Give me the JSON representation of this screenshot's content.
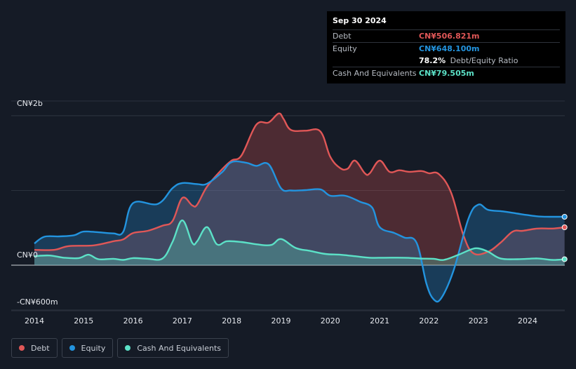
{
  "chart_data": {
    "type": "area",
    "title": "",
    "xlabel": "",
    "ylabel": "",
    "ylim": [
      -600,
      2000
    ],
    "y_unit": "CN¥ millions",
    "y_tick_labels": [
      {
        "value": 2000,
        "label": "CN¥2b"
      },
      {
        "value": 0,
        "label": "CN¥0"
      },
      {
        "value": -600,
        "label": "-CN¥600m"
      }
    ],
    "x_ticks": [
      {
        "value": 2014,
        "label": "2014"
      },
      {
        "value": 2015,
        "label": "2015"
      },
      {
        "value": 2016,
        "label": "2016"
      },
      {
        "value": 2017,
        "label": "2017"
      },
      {
        "value": 2018,
        "label": "2018"
      },
      {
        "value": 2019,
        "label": "2019"
      },
      {
        "value": 2020,
        "label": "2020"
      },
      {
        "value": 2021,
        "label": "2021"
      },
      {
        "value": 2022,
        "label": "2022"
      },
      {
        "value": 2023,
        "label": "2023"
      },
      {
        "value": 2024,
        "label": "2024"
      }
    ],
    "xlim": [
      2013.54,
      2024.75
    ],
    "series": [
      {
        "name": "Debt",
        "color": "#e05757",
        "points": [
          [
            2014.0,
            205
          ],
          [
            2014.4,
            205
          ],
          [
            2014.7,
            255
          ],
          [
            2015.2,
            265
          ],
          [
            2015.6,
            320
          ],
          [
            2015.8,
            345
          ],
          [
            2016.0,
            430
          ],
          [
            2016.3,
            460
          ],
          [
            2016.6,
            530
          ],
          [
            2016.8,
            590
          ],
          [
            2017.0,
            900
          ],
          [
            2017.2,
            800
          ],
          [
            2017.3,
            810
          ],
          [
            2017.5,
            1050
          ],
          [
            2017.8,
            1280
          ],
          [
            2018.0,
            1400
          ],
          [
            2018.2,
            1470
          ],
          [
            2018.5,
            1880
          ],
          [
            2018.75,
            1910
          ],
          [
            2018.95,
            2030
          ],
          [
            2019.05,
            1960
          ],
          [
            2019.2,
            1810
          ],
          [
            2019.5,
            1800
          ],
          [
            2019.8,
            1790
          ],
          [
            2020.0,
            1450
          ],
          [
            2020.2,
            1300
          ],
          [
            2020.35,
            1290
          ],
          [
            2020.5,
            1400
          ],
          [
            2020.7,
            1230
          ],
          [
            2020.8,
            1230
          ],
          [
            2021.0,
            1400
          ],
          [
            2021.2,
            1250
          ],
          [
            2021.4,
            1270
          ],
          [
            2021.6,
            1250
          ],
          [
            2021.85,
            1260
          ],
          [
            2022.0,
            1230
          ],
          [
            2022.2,
            1220
          ],
          [
            2022.45,
            970
          ],
          [
            2022.7,
            400
          ],
          [
            2022.9,
            160
          ],
          [
            2023.2,
            180
          ],
          [
            2023.45,
            300
          ],
          [
            2023.7,
            450
          ],
          [
            2023.9,
            460
          ],
          [
            2024.2,
            490
          ],
          [
            2024.5,
            490
          ],
          [
            2024.75,
            507
          ]
        ]
      },
      {
        "name": "Equity",
        "color": "#2394df",
        "points": [
          [
            2014.0,
            290
          ],
          [
            2014.2,
            380
          ],
          [
            2014.5,
            385
          ],
          [
            2014.8,
            400
          ],
          [
            2015.0,
            450
          ],
          [
            2015.3,
            440
          ],
          [
            2015.6,
            425
          ],
          [
            2015.8,
            445
          ],
          [
            2016.0,
            830
          ],
          [
            2016.5,
            820
          ],
          [
            2016.8,
            1030
          ],
          [
            2017.0,
            1100
          ],
          [
            2017.3,
            1085
          ],
          [
            2017.5,
            1090
          ],
          [
            2017.8,
            1240
          ],
          [
            2018.0,
            1380
          ],
          [
            2018.3,
            1370
          ],
          [
            2018.5,
            1330
          ],
          [
            2018.75,
            1350
          ],
          [
            2019.0,
            1030
          ],
          [
            2019.2,
            1000
          ],
          [
            2019.5,
            1005
          ],
          [
            2019.8,
            1015
          ],
          [
            2020.0,
            930
          ],
          [
            2020.3,
            930
          ],
          [
            2020.6,
            850
          ],
          [
            2020.85,
            770
          ],
          [
            2021.0,
            510
          ],
          [
            2021.3,
            430
          ],
          [
            2021.5,
            370
          ],
          [
            2021.75,
            300
          ],
          [
            2021.95,
            -250
          ],
          [
            2022.1,
            -460
          ],
          [
            2022.25,
            -440
          ],
          [
            2022.5,
            -70
          ],
          [
            2022.8,
            620
          ],
          [
            2023.0,
            810
          ],
          [
            2023.2,
            740
          ],
          [
            2023.5,
            720
          ],
          [
            2023.8,
            690
          ],
          [
            2024.0,
            670
          ],
          [
            2024.3,
            650
          ],
          [
            2024.75,
            648
          ]
        ]
      },
      {
        "name": "Cash And Equivalents",
        "color": "#5ce1c7",
        "points": [
          [
            2014.0,
            120
          ],
          [
            2014.3,
            130
          ],
          [
            2014.6,
            100
          ],
          [
            2014.9,
            95
          ],
          [
            2015.1,
            140
          ],
          [
            2015.3,
            80
          ],
          [
            2015.6,
            85
          ],
          [
            2015.8,
            70
          ],
          [
            2016.0,
            95
          ],
          [
            2016.3,
            85
          ],
          [
            2016.6,
            90
          ],
          [
            2016.8,
            310
          ],
          [
            2017.0,
            600
          ],
          [
            2017.2,
            300
          ],
          [
            2017.3,
            320
          ],
          [
            2017.5,
            510
          ],
          [
            2017.7,
            280
          ],
          [
            2017.9,
            320
          ],
          [
            2018.2,
            310
          ],
          [
            2018.5,
            280
          ],
          [
            2018.8,
            270
          ],
          [
            2019.0,
            350
          ],
          [
            2019.3,
            230
          ],
          [
            2019.6,
            190
          ],
          [
            2019.9,
            150
          ],
          [
            2020.2,
            140
          ],
          [
            2020.5,
            120
          ],
          [
            2020.8,
            100
          ],
          [
            2021.1,
            100
          ],
          [
            2021.5,
            100
          ],
          [
            2021.8,
            90
          ],
          [
            2022.1,
            85
          ],
          [
            2022.3,
            70
          ],
          [
            2022.6,
            140
          ],
          [
            2022.85,
            210
          ],
          [
            2023.0,
            225
          ],
          [
            2023.2,
            180
          ],
          [
            2023.45,
            90
          ],
          [
            2023.8,
            80
          ],
          [
            2024.2,
            90
          ],
          [
            2024.5,
            70
          ],
          [
            2024.75,
            80
          ]
        ]
      }
    ]
  },
  "tooltip": {
    "date": "Sep 30 2024",
    "debt_label": "Debt",
    "debt_value": "CN¥506.821m",
    "equity_label": "Equity",
    "equity_value": "CN¥648.100m",
    "ratio_value": "78.2%",
    "ratio_label": "Debt/Equity Ratio",
    "cash_label": "Cash And Equivalents",
    "cash_value": "CN¥79.505m"
  },
  "legend": {
    "debt": "Debt",
    "equity": "Equity",
    "cash": "Cash And Equivalents"
  },
  "colors": {
    "debt": "#e05757",
    "equity": "#2394df",
    "cash": "#5ce1c7",
    "background": "#151b26"
  }
}
